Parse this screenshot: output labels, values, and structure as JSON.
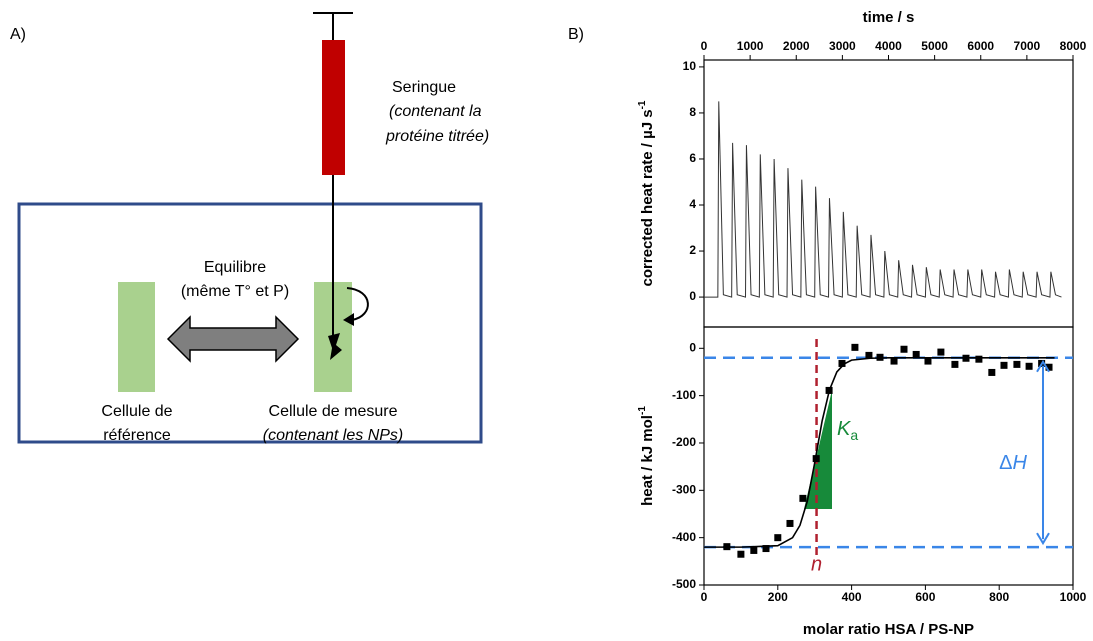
{
  "panel_a": {
    "label": "A)",
    "syringe": [
      "Seringue",
      "(contenant la",
      "protéine titrée)"
    ],
    "equilibrium": [
      "Equilibre",
      "(même T° et P)"
    ],
    "reference_cell": [
      "Cellule de",
      "référence"
    ],
    "measurement_cell": [
      "Cellule de mesure",
      "(contenant les NPs)"
    ]
  },
  "panel_b_label": "B)",
  "chart_data": [
    {
      "type": "line",
      "xlabel": "time / s",
      "ylabel": "corrected heat rate / µJ s",
      "ylabel_sup": "-1",
      "x": [
        0,
        300,
        320,
        420,
        600,
        620,
        720,
        900,
        920,
        1020,
        1200,
        1220,
        1320,
        1500,
        1520,
        1620,
        1800,
        1820,
        1920,
        2100,
        2120,
        2220,
        2400,
        2420,
        2520,
        2700,
        2720,
        2820,
        3000,
        3020,
        3120,
        3300,
        3320,
        3420,
        3600,
        3620,
        3720,
        3900,
        3920,
        4020,
        4200,
        4220,
        4320,
        4500,
        4520,
        4620,
        4800,
        4820,
        4920,
        5100,
        5120,
        5220,
        5400,
        5420,
        5520,
        5700,
        5720,
        5820,
        6000,
        6020,
        6120,
        6300,
        6320,
        6420,
        6600,
        6620,
        6720,
        6900,
        6920,
        7020,
        7200,
        7220,
        7320,
        7500,
        7520,
        7620,
        7750
      ],
      "values": [
        0,
        0,
        8.5,
        0.1,
        0,
        6.7,
        0.1,
        0,
        6.6,
        0.1,
        0,
        6.2,
        0.1,
        0,
        6.0,
        0.1,
        0,
        5.6,
        0.1,
        0,
        5.1,
        0.1,
        0,
        4.8,
        0.1,
        0,
        4.3,
        0.1,
        0,
        3.7,
        0.1,
        0,
        3.1,
        0.1,
        0,
        2.7,
        0.1,
        0,
        2.0,
        0.1,
        0,
        1.6,
        0.1,
        0,
        1.4,
        0.1,
        0,
        1.3,
        0.1,
        0,
        1.2,
        0.1,
        0,
        1.2,
        0.1,
        0,
        1.2,
        0.1,
        0,
        1.2,
        0.1,
        0,
        1.1,
        0.1,
        0,
        1.2,
        0.1,
        0,
        1.1,
        0.1,
        0,
        1.1,
        0.1,
        0,
        1.1,
        0.1,
        0
      ],
      "color": "#333333",
      "xlim": [
        0,
        8000
      ],
      "xticks": [
        0,
        1000,
        2000,
        3000,
        4000,
        5000,
        6000,
        7000,
        8000
      ],
      "ylim": [
        -1.3,
        10.3
      ],
      "yticks": [
        0,
        2,
        4,
        6,
        8,
        10
      ]
    },
    {
      "type": "scatter",
      "xlabel": "molar ratio HSA / PS-NP",
      "ylabel": "heat / kJ mol",
      "ylabel_sup": "-1",
      "x": [
        62,
        100,
        135,
        168,
        200,
        233,
        268,
        304,
        339,
        374,
        409,
        447,
        477,
        515,
        542,
        575,
        607,
        642,
        680,
        710,
        745,
        780,
        813,
        848,
        881,
        915,
        935
      ],
      "values": [
        -419,
        -435,
        -427,
        -423,
        -400,
        -370,
        -317,
        -233,
        -89,
        -32,
        2,
        -15,
        -19,
        -27,
        -2,
        -13,
        -27,
        -8,
        -34,
        -21,
        -23,
        -51,
        -36,
        -34,
        -38,
        -32,
        -40
      ],
      "color": "#000000",
      "fit": {
        "x": [
          0,
          100,
          200,
          240,
          260,
          280,
          300,
          320,
          340,
          360,
          380,
          400,
          450,
          500,
          700,
          950
        ],
        "values": [
          -420,
          -420,
          -417,
          -400,
          -374,
          -323,
          -242,
          -154,
          -88,
          -50,
          -33,
          -25,
          -21,
          -20,
          -20,
          -20
        ],
        "color": "#000000"
      },
      "hlines": {
        "values": [
          -20,
          -420
        ],
        "color": "#3a86e8"
      },
      "vline": {
        "value": 305,
        "color": "#b0202f"
      },
      "annotations": {
        "n": "n",
        "k": "K",
        "k_sub": "a",
        "delta": "Δ",
        "h": "H"
      },
      "xlim": [
        0,
        1000
      ],
      "xticks": [
        0,
        200,
        400,
        600,
        800,
        1000
      ],
      "ylim": [
        -500,
        45
      ],
      "yticks": [
        0,
        -100,
        -200,
        -300,
        -400,
        -500
      ]
    }
  ]
}
